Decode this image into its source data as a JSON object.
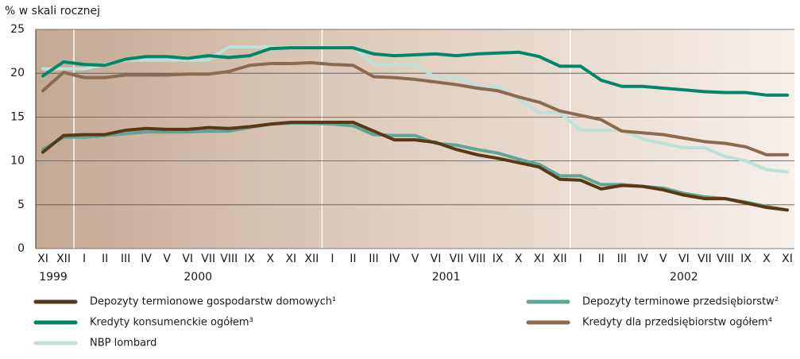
{
  "chart_data": {
    "type": "line",
    "y_label": "% w skali rocznej",
    "categories": [
      "XI",
      "XII",
      "I",
      "II",
      "III",
      "IV",
      "V",
      "VI",
      "VII",
      "VIII",
      "IX",
      "X",
      "XI",
      "XII",
      "I",
      "II",
      "III",
      "IV",
      "V",
      "VI",
      "VII",
      "VIII",
      "IX",
      "X",
      "XI",
      "XII",
      "I",
      "II",
      "III",
      "IV",
      "V",
      "VI",
      "VII",
      "VIII",
      "IX",
      "X",
      "XI"
    ],
    "year_labels": [
      "1999",
      "2000",
      "2001",
      "2002"
    ],
    "ylim": [
      0,
      25
    ],
    "yticks": [
      0,
      5,
      10,
      15,
      20,
      25
    ],
    "grid": true,
    "series": [
      {
        "name": "Depozyty termionowe gospodarstw domowych¹",
        "color": "#5a3815",
        "values": [
          11.0,
          12.9,
          13.0,
          13.0,
          13.5,
          13.7,
          13.6,
          13.6,
          13.8,
          13.7,
          13.9,
          14.2,
          14.4,
          14.4,
          14.4,
          14.4,
          13.4,
          12.4,
          12.4,
          12.1,
          11.3,
          10.7,
          10.3,
          9.8,
          9.3,
          7.9,
          7.8,
          6.8,
          7.2,
          7.1,
          6.7,
          6.1,
          5.7,
          5.7,
          5.2,
          4.7,
          4.4
        ]
      },
      {
        "name": "Depozyty terminowe przedsiębiorstw²",
        "color": "#5fa595",
        "values": [
          11.3,
          12.7,
          12.7,
          12.9,
          13.1,
          13.3,
          13.3,
          13.3,
          13.4,
          13.4,
          13.8,
          14.2,
          14.3,
          14.3,
          14.2,
          14.0,
          13.0,
          12.9,
          12.9,
          12.0,
          11.8,
          11.3,
          10.9,
          10.2,
          9.6,
          8.3,
          8.3,
          7.3,
          7.3,
          7.1,
          6.9,
          6.3,
          5.9,
          5.7,
          5.3,
          4.8,
          4.4
        ]
      },
      {
        "name": "Kredyty konsumenckie ogółem³",
        "color": "#00876a",
        "values": [
          19.7,
          21.3,
          21.0,
          20.9,
          21.6,
          21.9,
          21.9,
          21.7,
          22.0,
          21.8,
          22.0,
          22.8,
          22.9,
          22.9,
          22.9,
          22.9,
          22.2,
          22.0,
          22.1,
          22.2,
          22.0,
          22.2,
          22.3,
          22.4,
          21.9,
          20.8,
          20.8,
          19.2,
          18.5,
          18.5,
          18.3,
          18.1,
          17.9,
          17.8,
          17.8,
          17.5,
          17.5
        ]
      },
      {
        "name": "Kredyty dla przedsiębiorstw ogółem⁴",
        "color": "#8b6a4f",
        "values": [
          18.0,
          20.1,
          19.5,
          19.5,
          19.8,
          19.8,
          19.8,
          19.9,
          19.9,
          20.2,
          20.9,
          21.1,
          21.1,
          21.2,
          21.0,
          20.9,
          19.6,
          19.5,
          19.3,
          19.0,
          18.7,
          18.3,
          18.0,
          17.3,
          16.7,
          15.7,
          15.2,
          14.7,
          13.4,
          13.2,
          13.0,
          12.6,
          12.2,
          12.0,
          11.6,
          10.7,
          10.7
        ]
      },
      {
        "name": "NBP lombard",
        "color": "#bde0d8",
        "values": [
          20.5,
          20.5,
          20.5,
          21.0,
          21.5,
          21.5,
          21.5,
          21.5,
          21.5,
          23.0,
          23.0,
          23.0,
          23.0,
          23.0,
          23.0,
          23.0,
          21.0,
          21.0,
          21.0,
          19.5,
          19.5,
          18.5,
          18.5,
          17.0,
          15.5,
          15.5,
          13.5,
          13.5,
          13.5,
          12.5,
          12.0,
          11.5,
          11.5,
          10.5,
          10.0,
          9.0,
          8.75
        ]
      }
    ]
  }
}
